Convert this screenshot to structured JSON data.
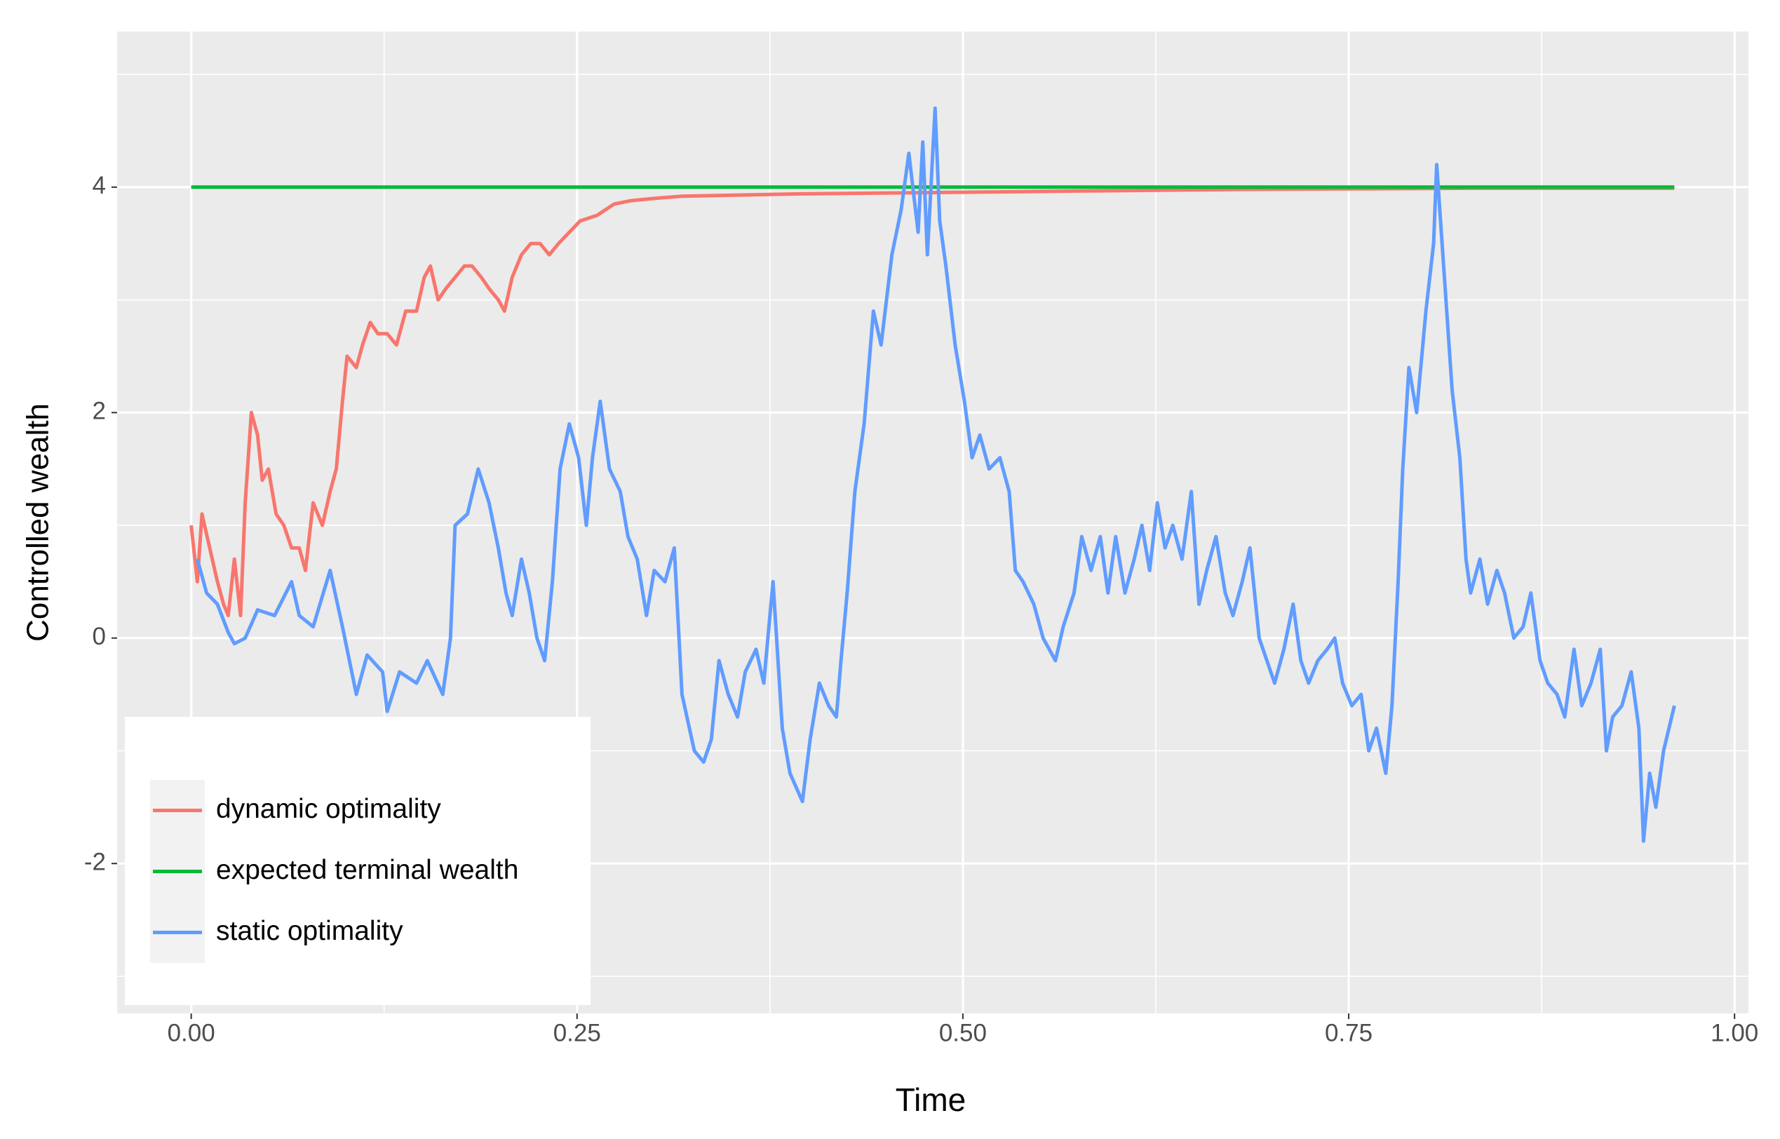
{
  "chart_data": {
    "type": "line",
    "xlabel": "Time",
    "ylabel": "Controlled wealth",
    "xlim": [
      -0.048,
      1.009
    ],
    "ylim": [
      -3.33,
      5.38
    ],
    "xticks": [
      {
        "value": 0,
        "label": "0.00"
      },
      0.25,
      {
        "value": 0.5,
        "label": "0.50"
      },
      0.75,
      {
        "value": 1,
        "label": "1.00"
      }
    ],
    "yticks": [
      -2,
      0,
      2,
      4
    ],
    "xminor": [
      0.125,
      0.375,
      0.625,
      0.875
    ],
    "yminor": [
      -3,
      -1,
      1,
      3,
      5
    ],
    "grid": true,
    "legend": "bottom-left",
    "series": [
      {
        "name": "dynamic optimality",
        "color": "#f8766d",
        "x": [
          0,
          0.004,
          0.007,
          0.012,
          0.017,
          0.021,
          0.024,
          0.028,
          0.032,
          0.035,
          0.039,
          0.043,
          0.046,
          0.05,
          0.055,
          0.06,
          0.065,
          0.07,
          0.074,
          0.079,
          0.085,
          0.09,
          0.094,
          0.098,
          0.101,
          0.107,
          0.111,
          0.116,
          0.121,
          0.127,
          0.133,
          0.139,
          0.146,
          0.151,
          0.155,
          0.16,
          0.165,
          0.171,
          0.177,
          0.182,
          0.188,
          0.193,
          0.199,
          0.203,
          0.208,
          0.214,
          0.22,
          0.226,
          0.232,
          0.238,
          0.245,
          0.252,
          0.263,
          0.274,
          0.285,
          0.3,
          0.318,
          0.355,
          0.392,
          0.465,
          0.539,
          0.612,
          0.686,
          0.76,
          0.833,
          0.961
        ],
        "values": [
          1.0,
          0.5,
          1.1,
          0.8,
          0.5,
          0.3,
          0.2,
          0.7,
          0.2,
          1.2,
          2.0,
          1.8,
          1.4,
          1.5,
          1.1,
          1.0,
          0.8,
          0.8,
          0.6,
          1.2,
          1.0,
          1.3,
          1.5,
          2.1,
          2.5,
          2.4,
          2.6,
          2.8,
          2.7,
          2.7,
          2.6,
          2.9,
          2.9,
          3.2,
          3.3,
          3.0,
          3.1,
          3.2,
          3.3,
          3.3,
          3.2,
          3.1,
          3.0,
          2.9,
          3.2,
          3.4,
          3.5,
          3.5,
          3.4,
          3.5,
          3.6,
          3.7,
          3.75,
          3.85,
          3.88,
          3.9,
          3.92,
          3.93,
          3.94,
          3.95,
          3.96,
          3.97,
          3.98,
          3.985,
          3.99,
          3.99
        ]
      },
      {
        "name": "expected terminal wealth",
        "color": "#00ba38",
        "x": [
          0,
          0.961
        ],
        "values": [
          4,
          4
        ]
      },
      {
        "name": "static optimality",
        "color": "#619cff",
        "x": [
          0.004,
          0.01,
          0.017,
          0.024,
          0.028,
          0.035,
          0.043,
          0.054,
          0.065,
          0.07,
          0.079,
          0.09,
          0.098,
          0.107,
          0.114,
          0.124,
          0.127,
          0.135,
          0.146,
          0.153,
          0.163,
          0.168,
          0.171,
          0.179,
          0.186,
          0.193,
          0.199,
          0.204,
          0.208,
          0.214,
          0.219,
          0.224,
          0.229,
          0.234,
          0.239,
          0.245,
          0.251,
          0.256,
          0.26,
          0.265,
          0.271,
          0.278,
          0.283,
          0.289,
          0.295,
          0.3,
          0.307,
          0.313,
          0.318,
          0.326,
          0.332,
          0.337,
          0.342,
          0.348,
          0.354,
          0.359,
          0.366,
          0.371,
          0.377,
          0.383,
          0.388,
          0.396,
          0.401,
          0.407,
          0.413,
          0.418,
          0.421,
          0.425,
          0.43,
          0.436,
          0.442,
          0.447,
          0.454,
          0.46,
          0.465,
          0.471,
          0.474,
          0.477,
          0.482,
          0.485,
          0.489,
          0.495,
          0.501,
          0.506,
          0.511,
          0.517,
          0.524,
          0.53,
          0.534,
          0.539,
          0.546,
          0.552,
          0.56,
          0.565,
          0.572,
          0.577,
          0.583,
          0.589,
          0.594,
          0.599,
          0.605,
          0.611,
          0.616,
          0.621,
          0.626,
          0.631,
          0.636,
          0.642,
          0.648,
          0.653,
          0.658,
          0.664,
          0.67,
          0.675,
          0.681,
          0.686,
          0.692,
          0.697,
          0.702,
          0.708,
          0.714,
          0.719,
          0.724,
          0.73,
          0.736,
          0.741,
          0.746,
          0.752,
          0.758,
          0.763,
          0.768,
          0.774,
          0.778,
          0.782,
          0.785,
          0.789,
          0.794,
          0.8,
          0.805,
          0.807,
          0.811,
          0.817,
          0.822,
          0.826,
          0.829,
          0.835,
          0.84,
          0.846,
          0.851,
          0.857,
          0.863,
          0.868,
          0.874,
          0.879,
          0.885,
          0.89,
          0.896,
          0.901,
          0.907,
          0.913,
          0.917,
          0.921,
          0.927,
          0.933,
          0.938,
          0.941,
          0.945,
          0.949,
          0.954,
          0.961
        ],
        "values": [
          0.7,
          0.4,
          0.3,
          0.05,
          -0.05,
          0.0,
          0.25,
          0.2,
          0.5,
          0.2,
          0.1,
          0.6,
          0.1,
          -0.5,
          -0.15,
          -0.3,
          -0.65,
          -0.3,
          -0.4,
          -0.2,
          -0.5,
          0.0,
          1.0,
          1.1,
          1.5,
          1.2,
          0.8,
          0.4,
          0.2,
          0.7,
          0.4,
          0.0,
          -0.2,
          0.5,
          1.5,
          1.9,
          1.6,
          1.0,
          1.6,
          2.1,
          1.5,
          1.3,
          0.9,
          0.7,
          0.2,
          0.6,
          0.5,
          0.8,
          -0.5,
          -1.0,
          -1.1,
          -0.9,
          -0.2,
          -0.5,
          -0.7,
          -0.3,
          -0.1,
          -0.4,
          0.5,
          -0.8,
          -1.2,
          -1.45,
          -0.9,
          -0.4,
          -0.6,
          -0.7,
          -0.2,
          0.4,
          1.3,
          1.9,
          2.9,
          2.6,
          3.4,
          3.8,
          4.3,
          3.6,
          4.4,
          3.4,
          4.7,
          3.7,
          3.3,
          2.6,
          2.1,
          1.6,
          1.8,
          1.5,
          1.6,
          1.3,
          0.6,
          0.5,
          0.3,
          0.0,
          -0.2,
          0.1,
          0.4,
          0.9,
          0.6,
          0.9,
          0.4,
          0.9,
          0.4,
          0.7,
          1.0,
          0.6,
          1.2,
          0.8,
          1.0,
          0.7,
          1.3,
          0.3,
          0.6,
          0.9,
          0.4,
          0.2,
          0.5,
          0.8,
          0.0,
          -0.2,
          -0.4,
          -0.1,
          0.3,
          -0.2,
          -0.4,
          -0.2,
          -0.1,
          0.0,
          -0.4,
          -0.6,
          -0.5,
          -1.0,
          -0.8,
          -1.2,
          -0.6,
          0.5,
          1.5,
          2.4,
          2.0,
          2.9,
          3.5,
          4.2,
          3.4,
          2.2,
          1.6,
          0.7,
          0.4,
          0.7,
          0.3,
          0.6,
          0.4,
          0.0,
          0.1,
          0.4,
          -0.2,
          -0.4,
          -0.5,
          -0.7,
          -0.1,
          -0.6,
          -0.4,
          -0.1,
          -1.0,
          -0.7,
          -0.6,
          -0.3,
          -0.8,
          -1.8,
          -1.2,
          -1.5,
          -1.0,
          -0.6
        ]
      }
    ]
  }
}
